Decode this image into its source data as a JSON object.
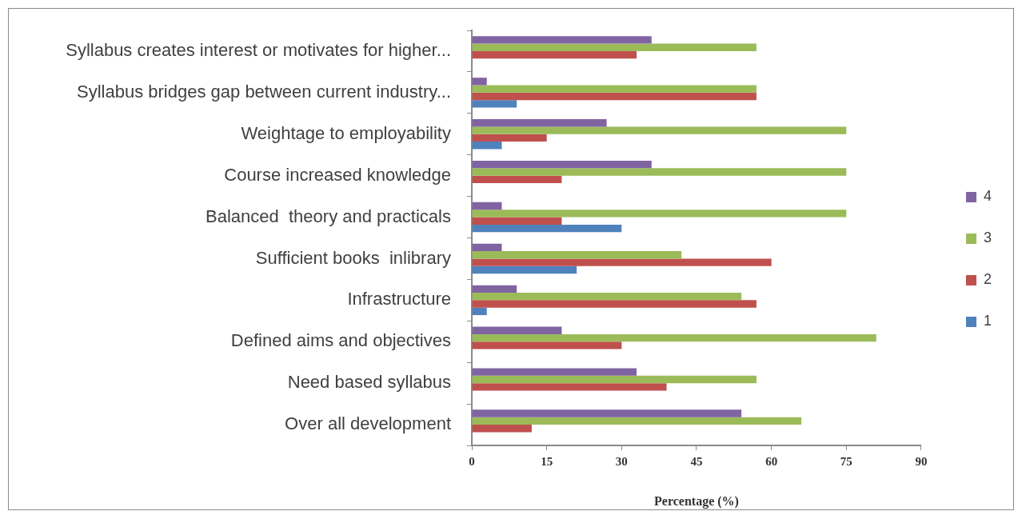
{
  "chart_data": {
    "type": "bar",
    "orientation": "horizontal",
    "xlabel": "Percentage (%)",
    "categories": [
      "Syllabus creates interest or motivates for higher...",
      "Syllabus bridges gap between current industry...",
      "Weightage to employability",
      "Course increased knowledge",
      "Balanced  theory and practicals",
      "Sufficient books  inlibrary",
      "Infrastructure",
      "Defined aims and objectives",
      "Need based syllabus",
      "Over all development"
    ],
    "series": [
      {
        "name": "4",
        "color": "#8064a2",
        "values": [
          36,
          3,
          27,
          36,
          6,
          6,
          9,
          18,
          33,
          54
        ]
      },
      {
        "name": "3",
        "color": "#9bbb59",
        "values": [
          57,
          57,
          75,
          75,
          75,
          42,
          54,
          81,
          57,
          66
        ]
      },
      {
        "name": "2",
        "color": "#c0504d",
        "values": [
          33,
          57,
          15,
          18,
          18,
          60,
          57,
          30,
          39,
          12
        ]
      },
      {
        "name": "1",
        "color": "#4f81bd",
        "values": [
          null,
          9,
          6,
          null,
          30,
          21,
          3,
          null,
          null,
          null
        ]
      }
    ],
    "xlim": [
      0,
      90
    ],
    "xticks": [
      0,
      15,
      30,
      45,
      60,
      75,
      90
    ],
    "legend": "right"
  }
}
